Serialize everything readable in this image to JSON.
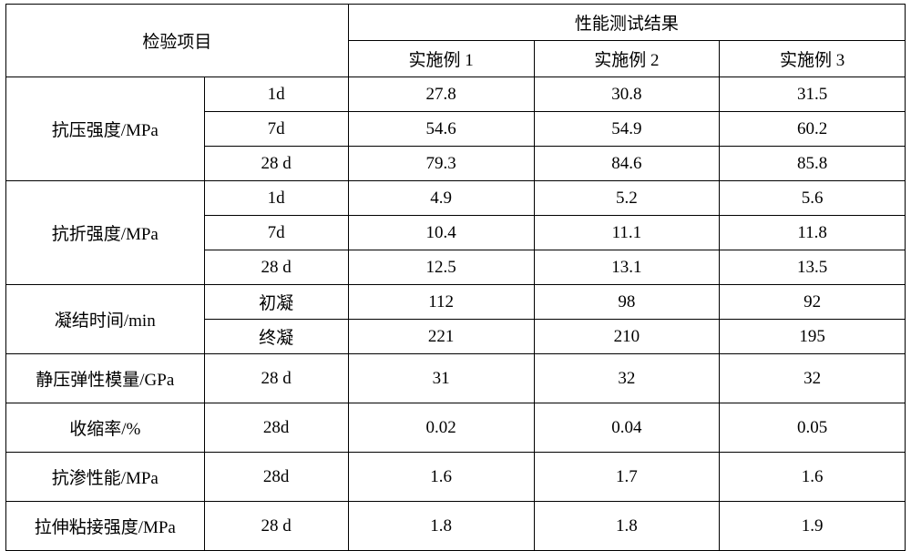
{
  "header": {
    "inspection_item": "检验项目",
    "results_header": "性能测试结果",
    "col1": "实施例 1",
    "col2": "实施例 2",
    "col3": "实施例 3"
  },
  "groups": [
    {
      "label": "抗压强度/MPa",
      "rows": [
        {
          "sub": "1d",
          "v1": "27.8",
          "v2": "30.8",
          "v3": "31.5"
        },
        {
          "sub": "7d",
          "v1": "54.6",
          "v2": "54.9",
          "v3": "60.2"
        },
        {
          "sub": "28 d",
          "v1": "79.3",
          "v2": "84.6",
          "v3": "85.8"
        }
      ]
    },
    {
      "label": "抗折强度/MPa",
      "rows": [
        {
          "sub": "1d",
          "v1": "4.9",
          "v2": "5.2",
          "v3": "5.6"
        },
        {
          "sub": "7d",
          "v1": "10.4",
          "v2": "11.1",
          "v3": "11.8"
        },
        {
          "sub": "28 d",
          "v1": "12.5",
          "v2": "13.1",
          "v3": "13.5"
        }
      ]
    },
    {
      "label": "凝结时间/min",
      "rows": [
        {
          "sub": "初凝",
          "v1": "112",
          "v2": "98",
          "v3": "92"
        },
        {
          "sub": "终凝",
          "v1": "221",
          "v2": "210",
          "v3": "195"
        }
      ]
    },
    {
      "label": "静压弹性模量/GPa",
      "rows": [
        {
          "sub": "28 d",
          "v1": "31",
          "v2": "32",
          "v3": "32"
        }
      ]
    },
    {
      "label": "收缩率/%",
      "rows": [
        {
          "sub": "28d",
          "v1": "0.02",
          "v2": "0.04",
          "v3": "0.05"
        }
      ]
    },
    {
      "label": "抗渗性能/MPa",
      "rows": [
        {
          "sub": "28d",
          "v1": "1.6",
          "v2": "1.7",
          "v3": "1.6"
        }
      ]
    },
    {
      "label": "拉伸粘接强度/MPa",
      "rows": [
        {
          "sub": "28 d",
          "v1": "1.8",
          "v2": "1.8",
          "v3": "1.9"
        }
      ]
    }
  ],
  "style": {
    "border_color": "#000000",
    "background_color": "#ffffff",
    "text_color": "#000000",
    "font_family": "SimSun",
    "font_size_pt": 14
  }
}
